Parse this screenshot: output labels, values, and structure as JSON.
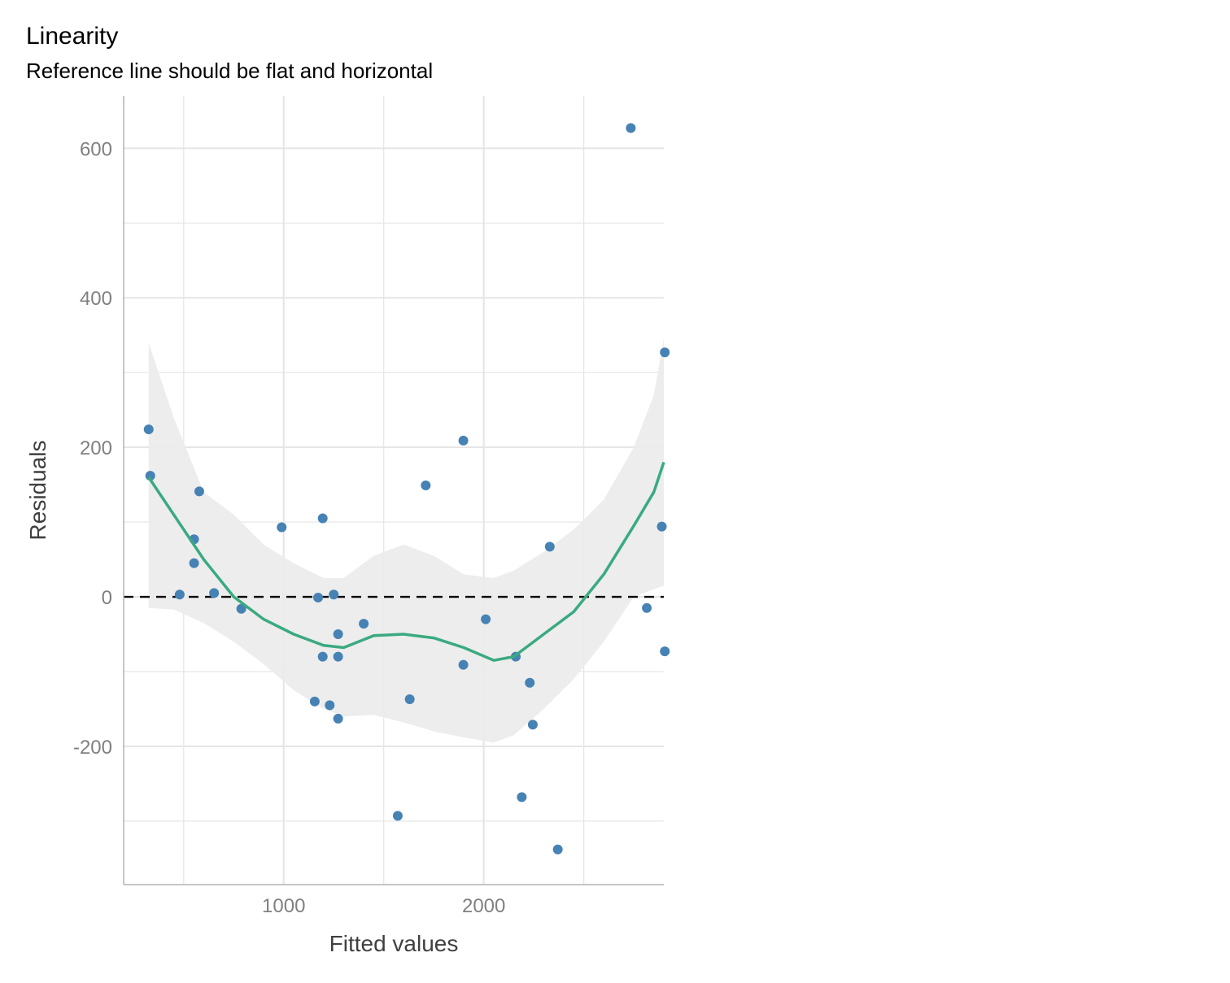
{
  "chart_data": {
    "type": "scatter",
    "title": "Linearity",
    "subtitle": "Reference line should be flat and horizontal",
    "xlabel": "Fitted values",
    "ylabel": "Residuals",
    "xlim": [
      200,
      2900
    ],
    "ylim": [
      -385,
      670
    ],
    "x_ticks": [
      1000,
      2000
    ],
    "x_tick_labels": [
      "1000",
      "2000"
    ],
    "y_ticks": [
      -200,
      0,
      200,
      400,
      600
    ],
    "y_tick_labels": [
      "-200",
      "0",
      "200",
      "400",
      "600"
    ],
    "x_minor_ticks": [
      500,
      1500,
      2500
    ],
    "y_minor_ticks": [
      -300,
      -100,
      100,
      300,
      500
    ],
    "grid": true,
    "reference_line": {
      "y": 0,
      "style": "dashed",
      "color": "#000000"
    },
    "colors": {
      "points": "#4682b4",
      "smooth": "#3aaa80",
      "band": "#ebebeb",
      "grid": "#e5e5e5",
      "axis": "#b3b3b3"
    },
    "points": [
      {
        "x": 325,
        "y": 224
      },
      {
        "x": 333,
        "y": 162
      },
      {
        "x": 480,
        "y": 3
      },
      {
        "x": 552,
        "y": 77
      },
      {
        "x": 552,
        "y": 45
      },
      {
        "x": 578,
        "y": 141
      },
      {
        "x": 652,
        "y": 5
      },
      {
        "x": 788,
        "y": -16
      },
      {
        "x": 990,
        "y": 93
      },
      {
        "x": 1155,
        "y": -140
      },
      {
        "x": 1172,
        "y": -1
      },
      {
        "x": 1195,
        "y": 105
      },
      {
        "x": 1195,
        "y": -80
      },
      {
        "x": 1230,
        "y": -145
      },
      {
        "x": 1250,
        "y": 3
      },
      {
        "x": 1272,
        "y": -50
      },
      {
        "x": 1272,
        "y": -80
      },
      {
        "x": 1272,
        "y": -163
      },
      {
        "x": 1400,
        "y": -36
      },
      {
        "x": 1570,
        "y": -293
      },
      {
        "x": 1630,
        "y": -137
      },
      {
        "x": 1710,
        "y": 149
      },
      {
        "x": 1898,
        "y": 209
      },
      {
        "x": 1898,
        "y": -91
      },
      {
        "x": 2010,
        "y": -30
      },
      {
        "x": 2160,
        "y": -80
      },
      {
        "x": 2190,
        "y": -268
      },
      {
        "x": 2230,
        "y": -115
      },
      {
        "x": 2245,
        "y": -171
      },
      {
        "x": 2330,
        "y": 67
      },
      {
        "x": 2370,
        "y": -338
      },
      {
        "x": 2735,
        "y": 627
      },
      {
        "x": 2815,
        "y": -15
      },
      {
        "x": 2890,
        "y": 94
      },
      {
        "x": 2905,
        "y": 327
      },
      {
        "x": 2905,
        "y": -73
      }
    ],
    "smooth": {
      "x": [
        325,
        450,
        600,
        750,
        900,
        1050,
        1200,
        1300,
        1450,
        1600,
        1750,
        1900,
        2050,
        2150,
        2300,
        2450,
        2600,
        2750,
        2850,
        2900
      ],
      "y": [
        160,
        110,
        50,
        0,
        -30,
        -50,
        -65,
        -68,
        -52,
        -50,
        -55,
        -68,
        -85,
        -80,
        -50,
        -20,
        30,
        95,
        140,
        180
      ],
      "lower": [
        -15,
        -17,
        -35,
        -60,
        -90,
        -125,
        -150,
        -160,
        -158,
        -168,
        -180,
        -188,
        -195,
        -185,
        -150,
        -110,
        -60,
        0,
        10,
        15
      ],
      "upper": [
        340,
        240,
        140,
        110,
        70,
        45,
        25,
        25,
        55,
        70,
        55,
        30,
        25,
        35,
        60,
        90,
        130,
        200,
        270,
        345
      ]
    }
  }
}
